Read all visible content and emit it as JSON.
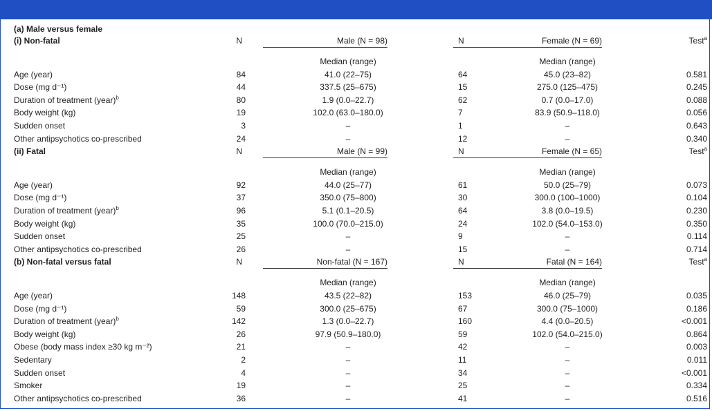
{
  "title": "(a) Male versus female",
  "sections": [
    {
      "heading": "(i) Non-fatal",
      "headers": [
        "N",
        "Male (N = 98)",
        "N",
        "Female (N = 69)",
        "Test"
      ],
      "test_note": "a",
      "subheaders": [
        "Median (range)",
        "Median (range)"
      ],
      "rows": [
        {
          "label": "Age (year)",
          "cells": [
            "84",
            "41.0 (22–75)",
            "64",
            "45.0 (23–82)",
            "0.581"
          ]
        },
        {
          "label": "Dose (mg d⁻¹)",
          "cells": [
            "44",
            "337.5 (25–675)",
            "15",
            "275.0 (125–475)",
            "0.245"
          ]
        },
        {
          "label": "Duration of treatment (year)",
          "note": "b",
          "cells": [
            "80",
            "1.9 (0.0–22.7)",
            "62",
            "0.7 (0.0–17.0)",
            "0.088"
          ]
        },
        {
          "label": "Body weight (kg)",
          "cells": [
            "19",
            "102.0 (63.0–180.0)",
            "7",
            "83.9 (50.9–118.0)",
            "0.056"
          ]
        },
        {
          "label": "Sudden onset",
          "cells": [
            "3",
            "–",
            "1",
            "–",
            "0.643"
          ]
        },
        {
          "label": "Other antipsychotics co-prescribed",
          "cells": [
            "24",
            "–",
            "12",
            "–",
            "0.340"
          ]
        }
      ]
    },
    {
      "heading": "(ii) Fatal",
      "headers": [
        "N",
        "Male (N = 99)",
        "N",
        "Female (N = 65)",
        "Test"
      ],
      "test_note": "a",
      "subheaders": [
        "Median (range)",
        "Median (range)"
      ],
      "rows": [
        {
          "label": "Age (year)",
          "cells": [
            "92",
            "44.0 (25–77)",
            "61",
            "50.0 (25–79)",
            "0.073"
          ]
        },
        {
          "label": "Dose (mg d⁻¹)",
          "cells": [
            "37",
            "350.0 (75–800)",
            "30",
            "300.0 (100–1000)",
            "0.104"
          ]
        },
        {
          "label": "Duration of treatment (year)",
          "note": "b",
          "cells": [
            "96",
            "5.1 (0.1–20.5)",
            "64",
            "3.8 (0.0–19.5)",
            "0.230"
          ]
        },
        {
          "label": "Body weight (kg)",
          "cells": [
            "35",
            "100.0 (70.0–215.0)",
            "24",
            "102.0 (54.0–153.0)",
            "0.350"
          ]
        },
        {
          "label": "Sudden onset",
          "cells": [
            "25",
            "–",
            "9",
            "–",
            "0.114"
          ]
        },
        {
          "label": "Other antipsychotics co-prescribed",
          "cells": [
            "26",
            "–",
            "15",
            "–",
            "0.714"
          ]
        }
      ]
    },
    {
      "heading": "(b) Non-fatal versus fatal",
      "headers": [
        "N",
        "Non-fatal (N = 167)",
        "N",
        "Fatal (N = 164)",
        "Test"
      ],
      "test_note": "a",
      "subheaders": [
        "Median (range)",
        "Median (range)"
      ],
      "rows": [
        {
          "label": "Age (year)",
          "cells": [
            "148",
            "43.5 (22–82)",
            "153",
            "46.0 (25–79)",
            "0.035"
          ]
        },
        {
          "label": "Dose (mg d⁻¹)",
          "cells": [
            "59",
            "300.0 (25–675)",
            "67",
            "300.0 (75–1000)",
            "0.186"
          ]
        },
        {
          "label": "Duration of treatment (year)",
          "note": "b",
          "cells": [
            "142",
            "1.3 (0.0–22.7)",
            "160",
            "4.4 (0.0–20.5)",
            "<0.001"
          ]
        },
        {
          "label": "Body weight (kg)",
          "cells": [
            "26",
            "97.9 (50.9–180.0)",
            "59",
            "102.0 (54.0–215.0)",
            "0.864"
          ]
        },
        {
          "label": "Obese (body mass index ≥30 kg m⁻²)",
          "cells": [
            "21",
            "–",
            "42",
            "–",
            "0.003"
          ]
        },
        {
          "label": "Sedentary",
          "cells": [
            "2",
            "–",
            "11",
            "–",
            "0.011"
          ]
        },
        {
          "label": "Sudden onset",
          "cells": [
            "4",
            "–",
            "34",
            "–",
            "<0.001"
          ]
        },
        {
          "label": "Smoker",
          "cells": [
            "19",
            "–",
            "25",
            "–",
            "0.334"
          ]
        },
        {
          "label": "Other antipsychotics co-prescribed",
          "cells": [
            "36",
            "–",
            "41",
            "–",
            "0.516"
          ]
        }
      ]
    }
  ]
}
